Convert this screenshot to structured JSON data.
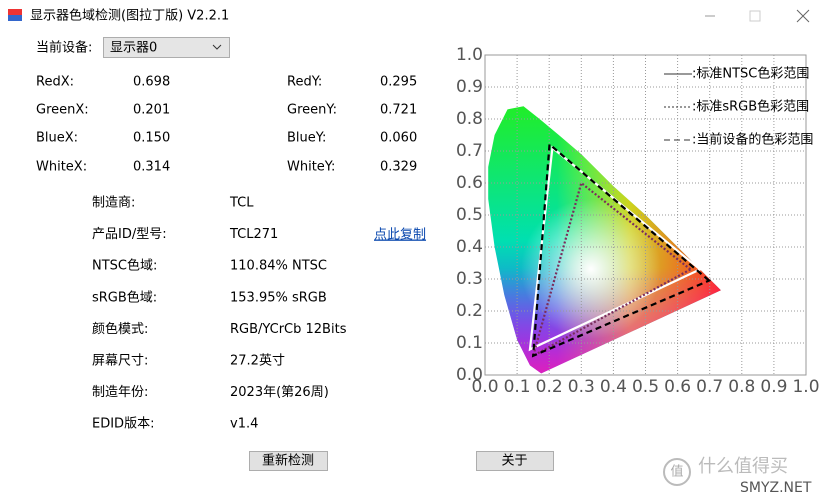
{
  "window": {
    "title": "显示器色域检测(图拉丁版) V2.2.1"
  },
  "device": {
    "label": "当前设备:",
    "selected": "显示器0"
  },
  "coordinates": [
    [
      {
        "label": "RedX:",
        "value": "0.698"
      },
      {
        "label": "RedY:",
        "value": "0.295"
      }
    ],
    [
      {
        "label": "GreenX:",
        "value": "0.201"
      },
      {
        "label": "GreenY:",
        "value": "0.721"
      }
    ],
    [
      {
        "label": "BlueX:",
        "value": "0.150"
      },
      {
        "label": "BlueY:",
        "value": "0.060"
      }
    ],
    [
      {
        "label": "WhiteX:",
        "value": "0.314"
      },
      {
        "label": "WhiteY:",
        "value": "0.329"
      }
    ]
  ],
  "info": [
    {
      "label": "制造商:",
      "value": "TCL"
    },
    {
      "label": "产品ID/型号:",
      "value": "TCL271"
    },
    {
      "label": "NTSC色域:",
      "value": "110.84% NTSC"
    },
    {
      "label": "sRGB色域:",
      "value": "153.95% sRGB"
    },
    {
      "label": "颜色模式:",
      "value": "RGB/YCrCb 12Bits"
    },
    {
      "label": "屏幕尺寸:",
      "value": "27.2英寸"
    },
    {
      "label": "制造年份:",
      "value": "2023年(第26周)"
    },
    {
      "label": "EDID版本:",
      "value": "v1.4"
    }
  ],
  "copy_link": "点此复制",
  "buttons": [
    "重新检测",
    "关于"
  ],
  "watermark": {
    "icon": "值",
    "site": "什么值得买",
    "url": "SMYZ.NET"
  },
  "chart_data": {
    "type": "line",
    "xlim": [
      0,
      1
    ],
    "ylim": [
      0,
      1
    ],
    "xticks": [
      {
        "value": 0,
        "label": "0.0"
      },
      0.1,
      0.2,
      0.3,
      0.4,
      0.5,
      0.6,
      0.7,
      0.8,
      0.9,
      {
        "value": 1,
        "label": "1.0"
      }
    ],
    "yticks": [
      {
        "value": 0,
        "label": "0.0"
      },
      0.1,
      0.2,
      0.3,
      0.4,
      0.5,
      0.6,
      0.7,
      0.8,
      0.9,
      {
        "value": 1,
        "label": "1.0"
      }
    ],
    "grid": true,
    "series": [
      {
        "name": ":标准NTSC色彩范围",
        "color": "#ffffff",
        "dash": "solid",
        "x": [
          0.67,
          0.21,
          0.14
        ],
        "y": [
          0.33,
          0.71,
          0.08
        ]
      },
      {
        "name": ":标准sRGB色彩范围",
        "color": "#7a2c5c",
        "dash": "dotted",
        "x": [
          0.64,
          0.3,
          0.15
        ],
        "y": [
          0.33,
          0.6,
          0.06
        ]
      },
      {
        "name": ":当前设备的色彩范围",
        "color": "#000000",
        "dash": "dashed",
        "x": [
          0.698,
          0.201,
          0.15
        ],
        "y": [
          0.295,
          0.721,
          0.06
        ]
      }
    ]
  }
}
